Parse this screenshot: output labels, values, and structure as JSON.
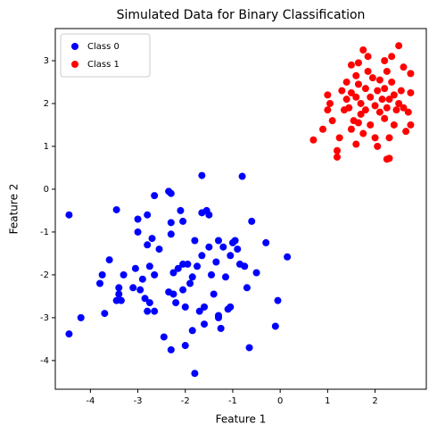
{
  "chart_data": {
    "type": "scatter",
    "title": "Simulated Data for Binary Classification",
    "x_label": "Feature 1",
    "y_label": "Feature 2",
    "xlim": [
      -4.74,
      3.08
    ],
    "ylim": [
      -4.67,
      3.75
    ],
    "xticks": [
      -4,
      -3,
      -2,
      -1,
      0,
      1,
      2
    ],
    "yticks": [
      -4,
      -3,
      -2,
      -1,
      0,
      1,
      2,
      3
    ],
    "legend": "upper left",
    "grid": false,
    "series": [
      {
        "name": "Class 0",
        "color": "#0000ff",
        "x": [
          -4.45,
          -4.45,
          -4.2,
          -3.8,
          -3.75,
          -3.7,
          -3.6,
          -3.45,
          -3.4,
          -3.4,
          -3.45,
          -3.35,
          -3.3,
          -3.1,
          -3.05,
          -3.0,
          -3.0,
          -2.95,
          -2.9,
          -2.85,
          -2.8,
          -2.75,
          -2.8,
          -2.8,
          -2.75,
          -2.7,
          -2.65,
          -2.65,
          -2.65,
          -2.55,
          -2.45,
          -2.35,
          -2.3,
          -2.3,
          -2.3,
          -2.35,
          -2.3,
          -2.25,
          -2.25,
          -2.2,
          -2.15,
          -2.1,
          -2.05,
          -2.05,
          -2.05,
          -2.0,
          -2.0,
          -1.95,
          -1.9,
          -1.85,
          -1.85,
          -1.8,
          -1.8,
          -1.75,
          -1.7,
          -1.65,
          -1.65,
          -1.65,
          -1.6,
          -1.6,
          -1.55,
          -1.5,
          -1.5,
          -1.45,
          -1.4,
          -1.35,
          -1.3,
          -1.3,
          -1.3,
          -1.25,
          -1.2,
          -1.15,
          -1.1,
          -1.05,
          -1.05,
          -1.0,
          -0.95,
          -0.9,
          -0.85,
          -0.8,
          -0.75,
          -0.7,
          -0.65,
          -0.6,
          -0.5,
          -0.3,
          -0.1,
          -0.05,
          0.15
        ],
        "values": [
          -0.6,
          -3.38,
          -3.0,
          -2.2,
          -2.0,
          -2.9,
          -1.65,
          -0.48,
          -2.3,
          -2.45,
          -2.6,
          -2.6,
          -2.0,
          -2.3,
          -1.85,
          -0.7,
          -1.0,
          -2.35,
          -2.1,
          -2.55,
          -2.85,
          -2.65,
          -0.6,
          -1.3,
          -1.8,
          -1.15,
          -2.0,
          -2.85,
          -0.15,
          -1.4,
          -3.45,
          -0.05,
          -0.1,
          -0.78,
          -1.05,
          -2.4,
          -3.75,
          -2.45,
          -1.95,
          -2.65,
          -1.85,
          -0.5,
          -0.75,
          -1.75,
          -2.35,
          -2.75,
          -3.65,
          -1.75,
          -2.2,
          -3.3,
          -2.05,
          -4.3,
          -1.2,
          -1.8,
          -2.85,
          -0.55,
          -1.55,
          0.32,
          -3.15,
          -2.75,
          -0.5,
          -0.6,
          -1.35,
          -2.0,
          -2.45,
          -1.7,
          -1.2,
          -3.0,
          -2.95,
          -3.25,
          -1.35,
          -2.05,
          -2.8,
          -2.75,
          -1.55,
          -1.25,
          -1.2,
          -1.4,
          -1.75,
          0.3,
          -1.8,
          -2.3,
          -3.7,
          -0.75,
          -1.95,
          -1.25,
          -3.2,
          -2.6,
          -1.58
        ]
      },
      {
        "name": "Class 1",
        "color": "#ff0000",
        "x": [
          0.7,
          0.9,
          1.0,
          1.0,
          1.05,
          1.1,
          1.2,
          1.2,
          1.25,
          1.3,
          1.35,
          1.4,
          1.4,
          1.45,
          1.5,
          1.5,
          1.5,
          1.55,
          1.6,
          1.6,
          1.6,
          1.65,
          1.65,
          1.65,
          1.7,
          1.7,
          1.75,
          1.75,
          1.8,
          1.8,
          1.85,
          1.85,
          1.9,
          1.9,
          1.95,
          2.0,
          2.0,
          2.05,
          2.05,
          2.1,
          2.1,
          2.15,
          2.2,
          2.2,
          2.2,
          2.25,
          2.25,
          2.3,
          2.3,
          2.35,
          2.35,
          2.4,
          2.4,
          2.45,
          2.5,
          2.5,
          2.55,
          2.6,
          2.65,
          2.7,
          2.75,
          2.75,
          2.75,
          2.6,
          2.3,
          2.25
        ],
        "values": [
          1.15,
          1.4,
          2.2,
          1.85,
          2.0,
          1.6,
          0.9,
          0.75,
          1.2,
          2.3,
          1.85,
          2.1,
          2.5,
          1.9,
          1.4,
          2.9,
          2.25,
          1.6,
          2.15,
          2.65,
          1.05,
          1.55,
          2.45,
          2.95,
          2.0,
          1.75,
          3.25,
          1.3,
          2.35,
          1.85,
          2.75,
          3.1,
          1.5,
          2.15,
          2.6,
          1.95,
          1.2,
          2.3,
          1.0,
          2.55,
          1.8,
          2.1,
          3.0,
          2.35,
          1.65,
          2.75,
          1.9,
          0.72,
          2.1,
          2.5,
          3.1,
          2.2,
          1.5,
          1.85,
          2.0,
          3.35,
          2.3,
          1.9,
          1.35,
          1.8,
          2.25,
          1.5,
          2.7,
          2.85,
          1.2,
          0.7
        ]
      }
    ]
  }
}
